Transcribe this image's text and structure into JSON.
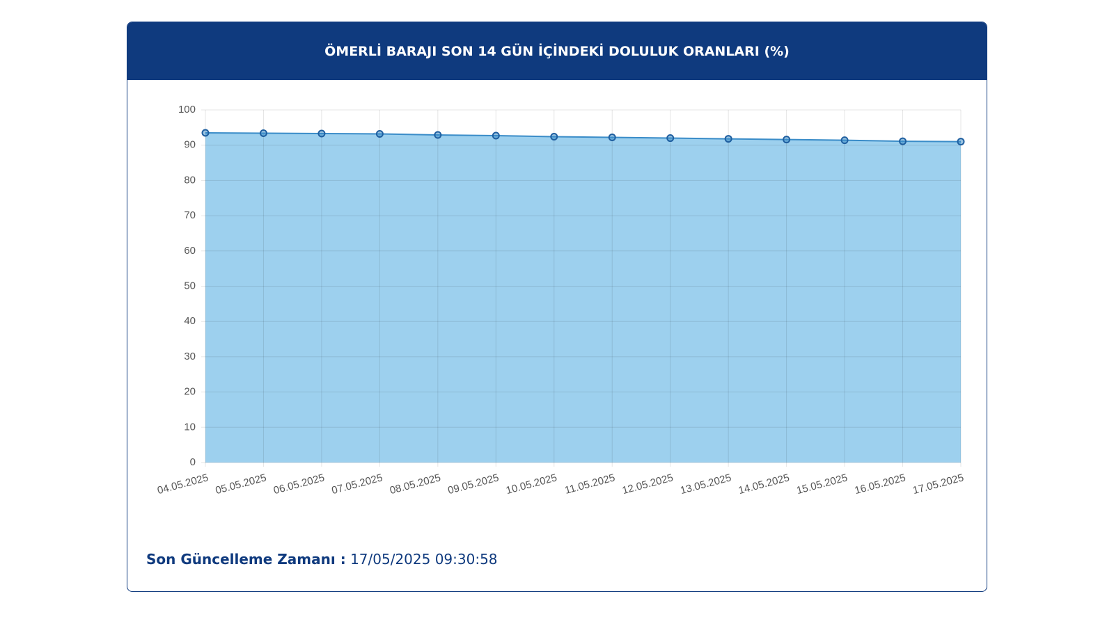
{
  "chart_data": {
    "type": "area",
    "title": "ÖMERLİ BARAJI SON 14 GÜN İÇİNDEKİ DOLULUK ORANLARI (%)",
    "categories": [
      "04.05.2025",
      "05.05.2025",
      "06.05.2025",
      "07.05.2025",
      "08.05.2025",
      "09.05.2025",
      "10.05.2025",
      "11.05.2025",
      "12.05.2025",
      "13.05.2025",
      "14.05.2025",
      "15.05.2025",
      "16.05.2025",
      "17.05.2025"
    ],
    "values": [
      93.5,
      93.4,
      93.3,
      93.2,
      92.9,
      92.7,
      92.4,
      92.2,
      92.0,
      91.8,
      91.6,
      91.4,
      91.1,
      91.0
    ],
    "color": "#3a8cc8",
    "fill": "#9dd0ee",
    "ylim": [
      0,
      100
    ],
    "yticks": [
      0,
      10,
      20,
      30,
      40,
      50,
      60,
      70,
      80,
      90,
      100
    ],
    "grid": true
  },
  "footer": {
    "label": "Son Güncelleme Zamanı :",
    "value": "17/05/2025 09:30:58"
  }
}
